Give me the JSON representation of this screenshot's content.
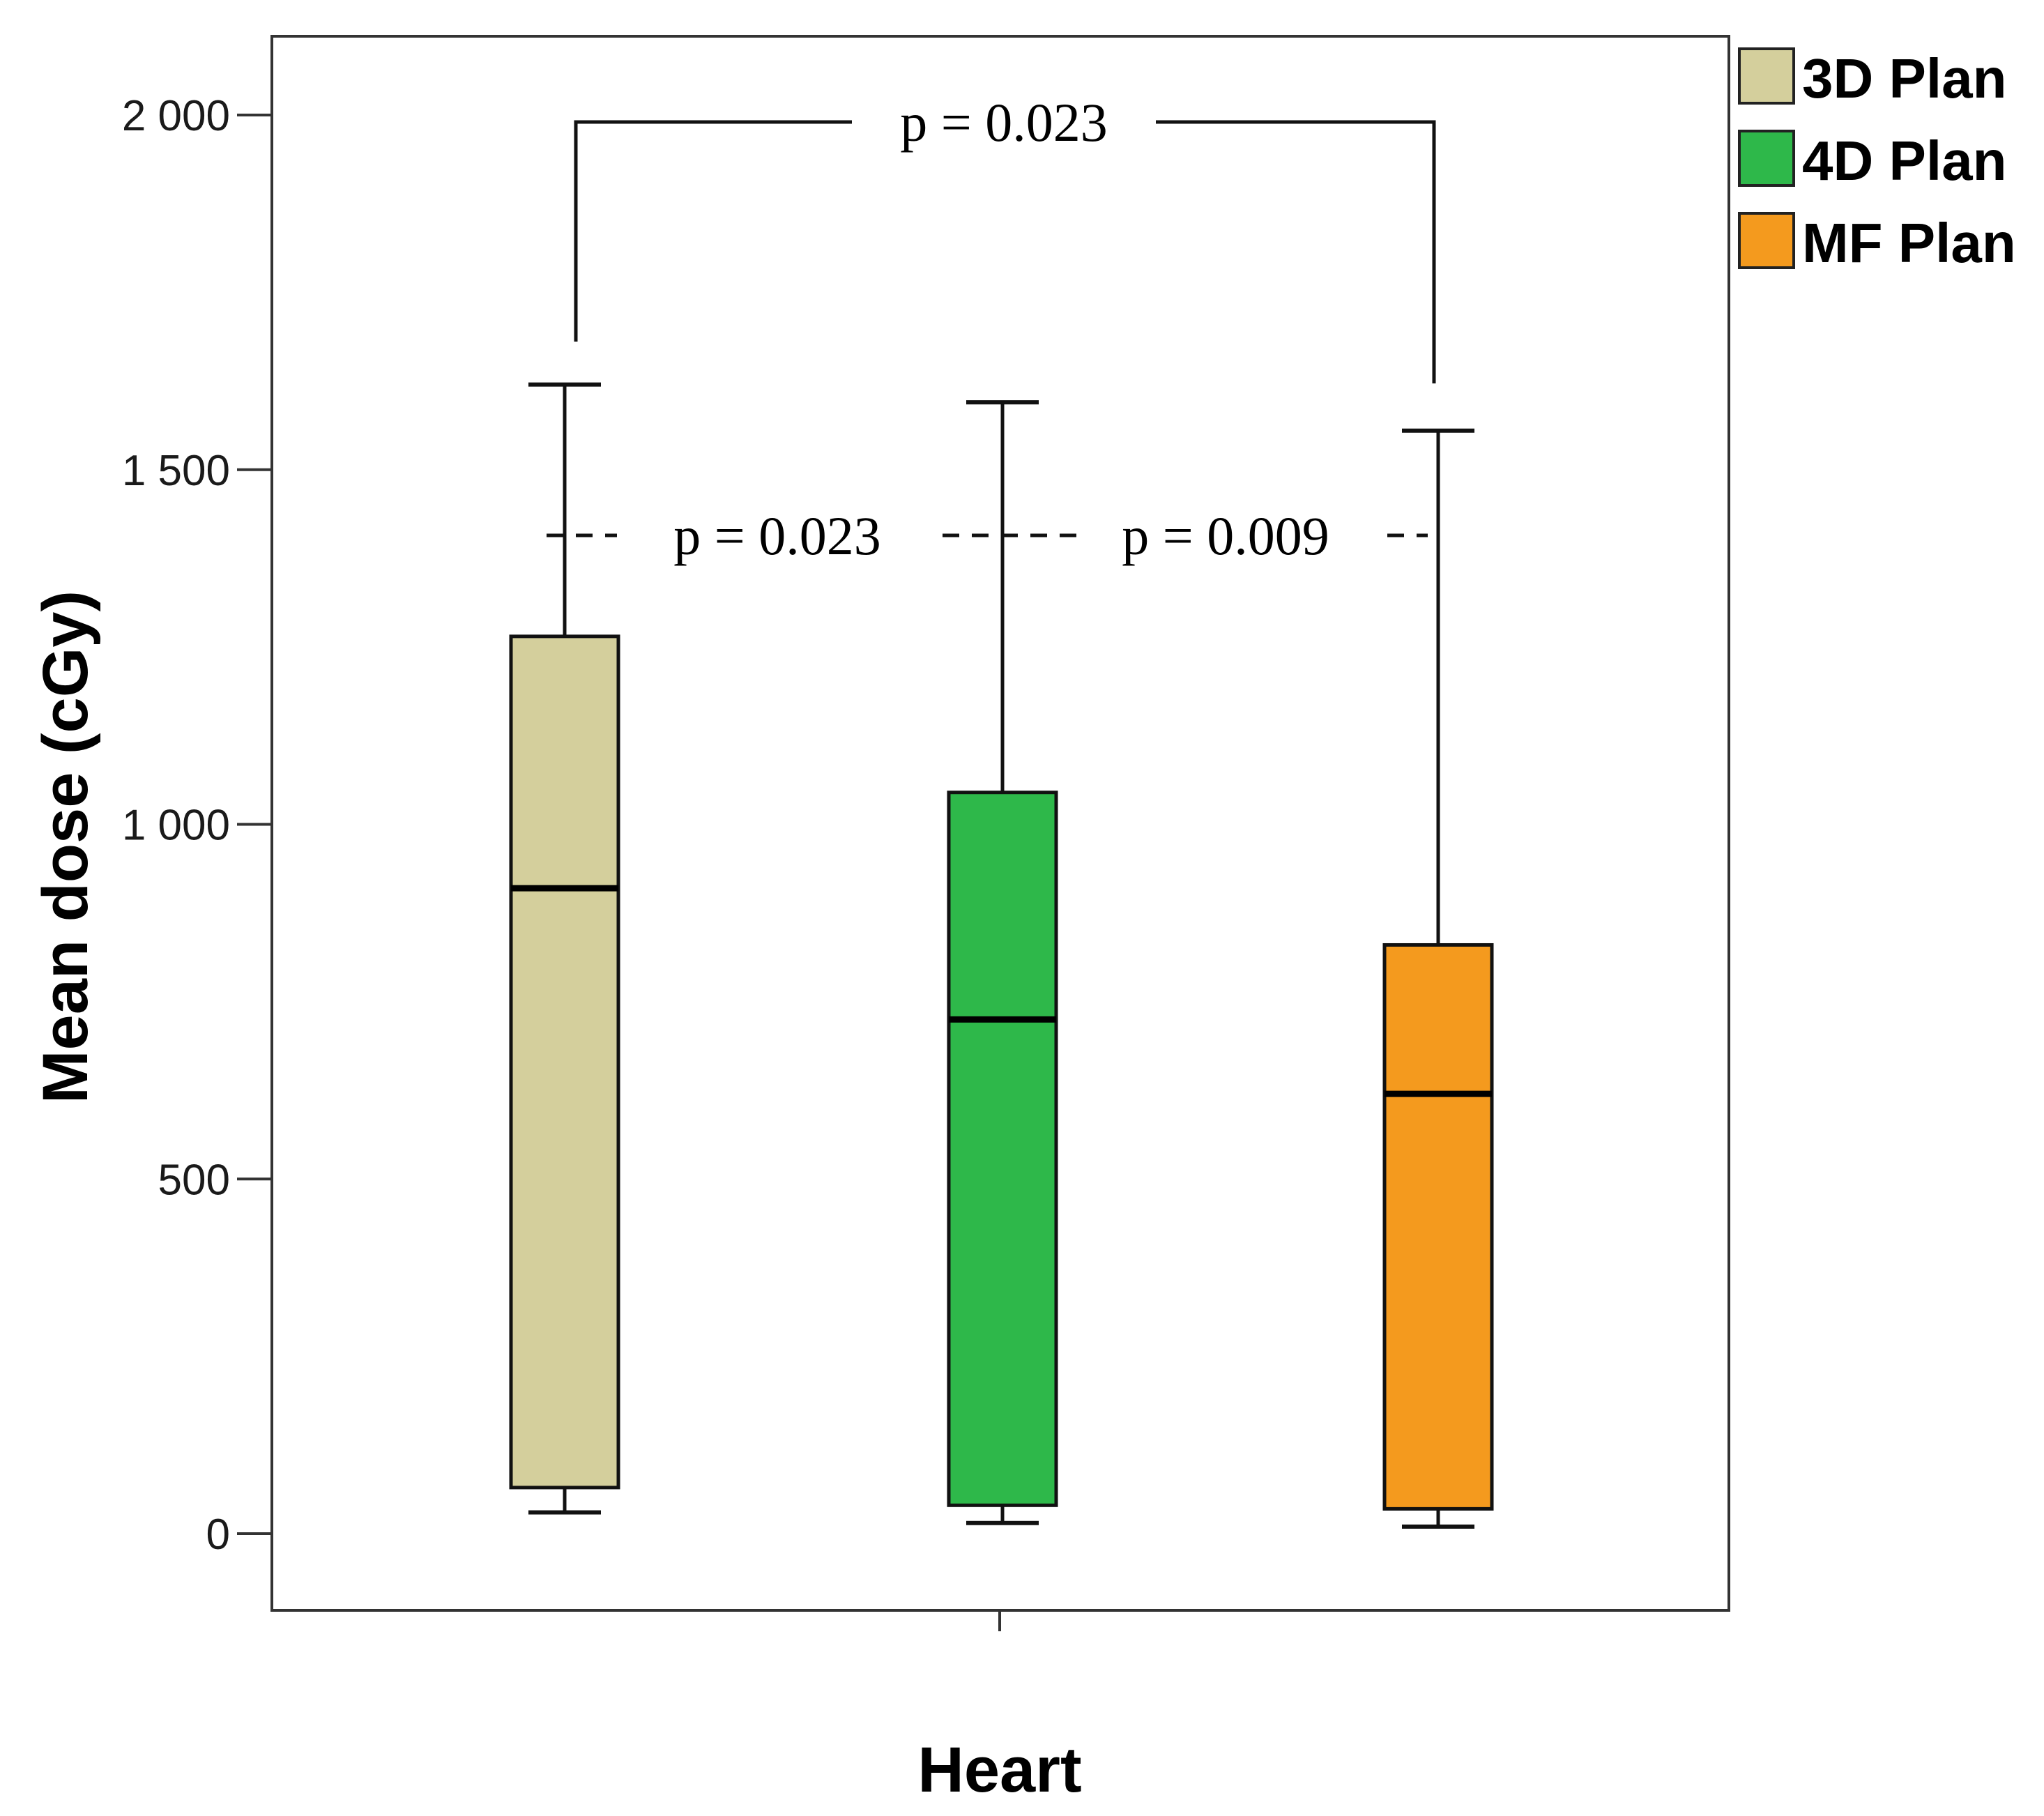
{
  "chart_data": {
    "type": "box",
    "xlabel": "Heart",
    "ylabel": "Mean dose (cGy)",
    "ylim": [
      -110,
      2110
    ],
    "yticks": [
      0,
      500,
      1000,
      1500,
      2000
    ],
    "ytick_labels": [
      "0",
      "500",
      "1 000",
      "1 500",
      "2 000"
    ],
    "category": "Heart",
    "series": [
      {
        "name": "3D Plan",
        "color": "#d4cf9c",
        "whisker_low": 30,
        "q1": 65,
        "median": 910,
        "q3": 1265,
        "whisker_high": 1620
      },
      {
        "name": "4D Plan",
        "color": "#2eb84a",
        "whisker_low": 15,
        "q1": 40,
        "median": 725,
        "q3": 1045,
        "whisker_high": 1595
      },
      {
        "name": "MF Plan",
        "color": "#f49a1e",
        "whisker_low": 10,
        "q1": 35,
        "median": 620,
        "q3": 830,
        "whisker_high": 1555
      }
    ],
    "annotations": [
      {
        "text": "p = 0.023",
        "from": "3D Plan",
        "to": "MF Plan",
        "style": "bracket"
      },
      {
        "text": "p = 0.023",
        "from": "3D Plan",
        "to": "4D Plan",
        "style": "dashed"
      },
      {
        "text": "p = 0.009",
        "from": "4D Plan",
        "to": "MF Plan",
        "style": "dashed"
      }
    ]
  }
}
